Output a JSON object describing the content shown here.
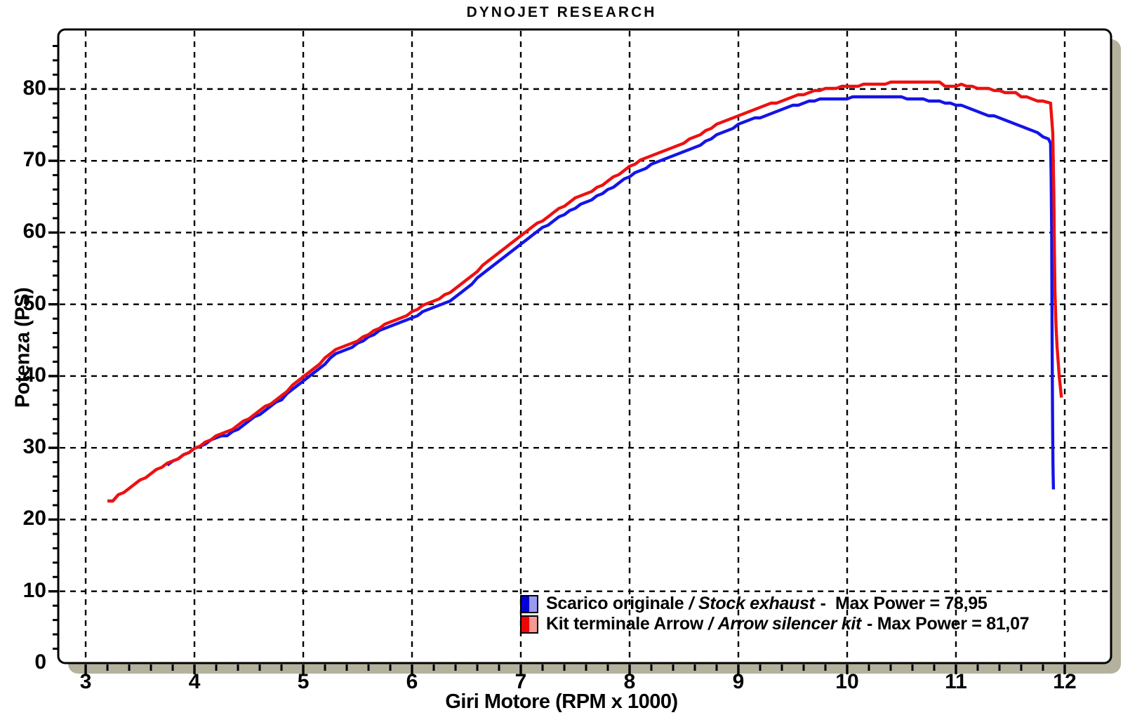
{
  "title": "DYNOJET RESEARCH",
  "chart_data": {
    "type": "line",
    "title": "DYNOJET RESEARCH",
    "xlabel": "Giri Motore (RPM x 1000)",
    "ylabel": "Potenza (PS)",
    "xlim": [
      2.748,
      12.426
    ],
    "ylim": [
      0,
      88.3
    ],
    "x_major_ticks": [
      3,
      4,
      5,
      6,
      7,
      8,
      9,
      10,
      11,
      12
    ],
    "x_minor_step": 0.2,
    "y_major_ticks": [
      0,
      10,
      20,
      30,
      40,
      50,
      60,
      70,
      80
    ],
    "y_minor_step": 2,
    "grid": "dashed black lines at every major tick, both axes",
    "legend_position": "inside plot, bottom center-right",
    "frame": {
      "background": "#ffffff",
      "border_color": "#000000",
      "bezel_color": "#b4b19d"
    },
    "series": [
      {
        "name": "Scarico originale / Stock exhaust",
        "color": "#1414e8",
        "max_power": "78,95",
        "points": [
          [
            3.75,
            27.6
          ],
          [
            3.85,
            28.5
          ],
          [
            3.95,
            29.4
          ],
          [
            4.05,
            30.2
          ],
          [
            4.15,
            31.1
          ],
          [
            4.2,
            31.4
          ],
          [
            4.3,
            31.7
          ],
          [
            4.4,
            32.7
          ],
          [
            4.5,
            33.7
          ],
          [
            4.6,
            34.7
          ],
          [
            4.7,
            35.7
          ],
          [
            4.8,
            36.8
          ],
          [
            4.9,
            38.1
          ],
          [
            5.0,
            39.4
          ],
          [
            5.1,
            40.6
          ],
          [
            5.2,
            41.8
          ],
          [
            5.3,
            43.0
          ],
          [
            5.35,
            43.5
          ],
          [
            5.45,
            44.1
          ],
          [
            5.55,
            45.0
          ],
          [
            5.65,
            45.9
          ],
          [
            5.75,
            46.6
          ],
          [
            5.85,
            47.2
          ],
          [
            5.95,
            47.9
          ],
          [
            6.05,
            48.5
          ],
          [
            6.15,
            49.2
          ],
          [
            6.25,
            49.8
          ],
          [
            6.3,
            50.1
          ],
          [
            6.4,
            51.1
          ],
          [
            6.5,
            52.3
          ],
          [
            6.6,
            53.6
          ],
          [
            6.7,
            54.9
          ],
          [
            6.8,
            56.1
          ],
          [
            6.9,
            57.3
          ],
          [
            7.0,
            58.4
          ],
          [
            7.1,
            59.5
          ],
          [
            7.2,
            60.6
          ],
          [
            7.3,
            61.6
          ],
          [
            7.4,
            62.6
          ],
          [
            7.5,
            63.5
          ],
          [
            7.6,
            64.2
          ],
          [
            7.7,
            65.0
          ],
          [
            7.8,
            65.9
          ],
          [
            7.9,
            66.9
          ],
          [
            8.0,
            67.9
          ],
          [
            8.1,
            68.7
          ],
          [
            8.2,
            69.4
          ],
          [
            8.3,
            70.0
          ],
          [
            8.4,
            70.6
          ],
          [
            8.5,
            71.2
          ],
          [
            8.6,
            71.9
          ],
          [
            8.7,
            72.7
          ],
          [
            8.8,
            73.5
          ],
          [
            8.9,
            74.3
          ],
          [
            9.0,
            75.0
          ],
          [
            9.1,
            75.6
          ],
          [
            9.2,
            76.1
          ],
          [
            9.3,
            76.6
          ],
          [
            9.4,
            77.1
          ],
          [
            9.5,
            77.6
          ],
          [
            9.6,
            78.1
          ],
          [
            9.65,
            78.4
          ],
          [
            9.75,
            78.5
          ],
          [
            9.85,
            78.6
          ],
          [
            9.95,
            78.7
          ],
          [
            10.05,
            78.8
          ],
          [
            10.15,
            78.9
          ],
          [
            10.25,
            78.95
          ],
          [
            10.4,
            78.95
          ],
          [
            10.5,
            78.8
          ],
          [
            10.6,
            78.7
          ],
          [
            10.7,
            78.5
          ],
          [
            10.8,
            78.3
          ],
          [
            10.9,
            78.1
          ],
          [
            11.0,
            77.8
          ],
          [
            11.1,
            77.4
          ],
          [
            11.2,
            76.9
          ],
          [
            11.3,
            76.4
          ],
          [
            11.4,
            75.9
          ],
          [
            11.5,
            75.4
          ],
          [
            11.6,
            74.8
          ],
          [
            11.7,
            74.2
          ],
          [
            11.75,
            73.8
          ],
          [
            11.8,
            73.4
          ],
          [
            11.85,
            73.0
          ],
          [
            11.87,
            72.6
          ],
          [
            11.875,
            68
          ],
          [
            11.88,
            60
          ],
          [
            11.882,
            52
          ],
          [
            11.884,
            45
          ],
          [
            11.886,
            40
          ],
          [
            11.888,
            35
          ],
          [
            11.89,
            31
          ],
          [
            11.892,
            28
          ],
          [
            11.894,
            26
          ],
          [
            11.896,
            24.2
          ]
        ]
      },
      {
        "name": "Kit terminale Arrow / Arrow silencer kit",
        "color": "#ee1010",
        "max_power": "81,07",
        "points": [
          [
            3.2,
            22.5
          ],
          [
            3.25,
            22.7
          ],
          [
            3.3,
            23.4
          ],
          [
            3.4,
            24.4
          ],
          [
            3.5,
            25.4
          ],
          [
            3.6,
            26.4
          ],
          [
            3.7,
            27.3
          ],
          [
            3.8,
            28.2
          ],
          [
            3.9,
            29.0
          ],
          [
            4.0,
            29.8
          ],
          [
            4.1,
            30.7
          ],
          [
            4.2,
            31.6
          ],
          [
            4.3,
            32.3
          ],
          [
            4.35,
            32.5
          ],
          [
            4.45,
            33.6
          ],
          [
            4.55,
            34.7
          ],
          [
            4.65,
            35.7
          ],
          [
            4.75,
            36.7
          ],
          [
            4.85,
            37.9
          ],
          [
            4.95,
            39.3
          ],
          [
            5.0,
            40.0
          ],
          [
            5.1,
            41.2
          ],
          [
            5.2,
            42.4
          ],
          [
            5.3,
            43.6
          ],
          [
            5.35,
            44.0
          ],
          [
            5.45,
            44.5
          ],
          [
            5.55,
            45.4
          ],
          [
            5.65,
            46.4
          ],
          [
            5.75,
            47.1
          ],
          [
            5.85,
            47.8
          ],
          [
            5.95,
            48.5
          ],
          [
            6.05,
            49.3
          ],
          [
            6.15,
            50.2
          ],
          [
            6.25,
            50.8
          ],
          [
            6.35,
            51.6
          ],
          [
            6.45,
            52.8
          ],
          [
            6.55,
            54.0
          ],
          [
            6.65,
            55.3
          ],
          [
            6.75,
            56.6
          ],
          [
            6.85,
            57.8
          ],
          [
            6.95,
            59.0
          ],
          [
            7.05,
            60.2
          ],
          [
            7.15,
            61.2
          ],
          [
            7.25,
            62.3
          ],
          [
            7.35,
            63.3
          ],
          [
            7.45,
            64.3
          ],
          [
            7.55,
            65.1
          ],
          [
            7.6,
            65.4
          ],
          [
            7.7,
            66.2
          ],
          [
            7.8,
            67.2
          ],
          [
            7.9,
            68.2
          ],
          [
            8.0,
            69.2
          ],
          [
            8.1,
            70.0
          ],
          [
            8.2,
            70.8
          ],
          [
            8.3,
            71.4
          ],
          [
            8.4,
            72.0
          ],
          [
            8.5,
            72.6
          ],
          [
            8.6,
            73.3
          ],
          [
            8.7,
            74.1
          ],
          [
            8.8,
            75.0
          ],
          [
            8.9,
            75.7
          ],
          [
            9.0,
            76.3
          ],
          [
            9.1,
            76.9
          ],
          [
            9.2,
            77.4
          ],
          [
            9.3,
            77.9
          ],
          [
            9.4,
            78.4
          ],
          [
            9.5,
            78.9
          ],
          [
            9.6,
            79.3
          ],
          [
            9.7,
            79.7
          ],
          [
            9.8,
            80.0
          ],
          [
            9.9,
            80.2
          ],
          [
            10.0,
            80.4
          ],
          [
            10.1,
            80.5
          ],
          [
            10.2,
            80.6
          ],
          [
            10.3,
            80.7
          ],
          [
            10.4,
            80.9
          ],
          [
            10.5,
            81.0
          ],
          [
            10.6,
            81.07
          ],
          [
            10.75,
            81.07
          ],
          [
            10.85,
            80.9
          ],
          [
            10.9,
            80.4
          ],
          [
            11.0,
            80.5
          ],
          [
            11.05,
            80.6
          ],
          [
            11.1,
            80.3
          ],
          [
            11.2,
            80.2
          ],
          [
            11.3,
            80.1
          ],
          [
            11.35,
            79.8
          ],
          [
            11.45,
            79.6
          ],
          [
            11.55,
            79.4
          ],
          [
            11.6,
            79.0
          ],
          [
            11.7,
            78.7
          ],
          [
            11.8,
            78.2
          ],
          [
            11.87,
            77.9
          ],
          [
            11.89,
            74
          ],
          [
            11.9,
            65
          ],
          [
            11.905,
            58
          ],
          [
            11.91,
            52
          ],
          [
            11.92,
            47
          ],
          [
            11.93,
            44
          ],
          [
            11.94,
            42
          ],
          [
            11.95,
            40
          ],
          [
            11.96,
            38.5
          ],
          [
            11.97,
            37
          ]
        ]
      }
    ]
  },
  "legend": {
    "rows": [
      {
        "label_it": "Scarico originale",
        "sep": "/",
        "label_en": "Stock exhaust",
        "suffix": "-  Max Power = 78,95",
        "swatch_left": "#0202d6",
        "swatch_right": "#9a9af2"
      },
      {
        "label_it": "Kit terminale Arrow",
        "sep": "/",
        "label_en": "Arrow silencer kit",
        "suffix": "- Max Power = 81,07",
        "swatch_left": "#ee0404",
        "swatch_right": "#f49a92"
      }
    ]
  }
}
